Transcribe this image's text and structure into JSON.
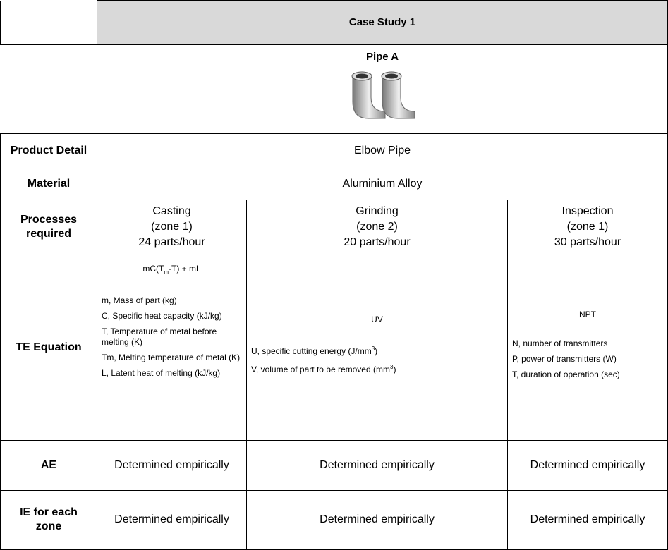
{
  "table": {
    "case_title": "Case Study 1",
    "product_name": "Pipe A",
    "product_detail": {
      "label": "Product Detail",
      "value": "Elbow Pipe"
    },
    "material": {
      "label": "Material",
      "value": "Aluminium Alloy"
    },
    "processes": {
      "label": "Processes required",
      "items": [
        {
          "name": "Casting",
          "zone": "(zone 1)",
          "rate": "24 parts/hour"
        },
        {
          "name": "Grinding",
          "zone": "(zone 2)",
          "rate": "20 parts/hour"
        },
        {
          "name": "Inspection",
          "zone": "(zone 1)",
          "rate": "30 parts/hour"
        }
      ]
    },
    "te": {
      "label": "TE Equation",
      "columns": [
        {
          "formula": {
            "before": "mC(T",
            "sub": "m",
            "after": "-T) + mL"
          },
          "terms": [
            "m, Mass of part (kg)",
            "C, Specific heat capacity (kJ/kg)",
            "T, Temperature of  metal before melting (K)",
            "Tm, Melting temperature of metal (K)",
            "L, Latent heat of melting (kJ/kg)"
          ]
        },
        {
          "formula": {
            "before": "UV"
          },
          "terms": [
            {
              "before": "U,  specific cutting energy (J/mm",
              "sup": "3",
              "after": ")"
            },
            {
              "before": "V,  volume of part to be removed (mm",
              "sup": "3",
              "after": ")"
            }
          ]
        },
        {
          "formula": {
            "before": "NPT"
          },
          "terms": [
            "N,  number of transmitters",
            "P,  power of transmitters (W)",
            "T,   duration of operation (sec)"
          ]
        }
      ]
    },
    "ae": {
      "label": "AE",
      "values": [
        "Determined empirically",
        "Determined empirically",
        "Determined empirically"
      ]
    },
    "ie": {
      "label": "IE for each zone",
      "values": [
        "Determined empirically",
        "Determined empirically",
        "Determined empirically"
      ]
    }
  }
}
